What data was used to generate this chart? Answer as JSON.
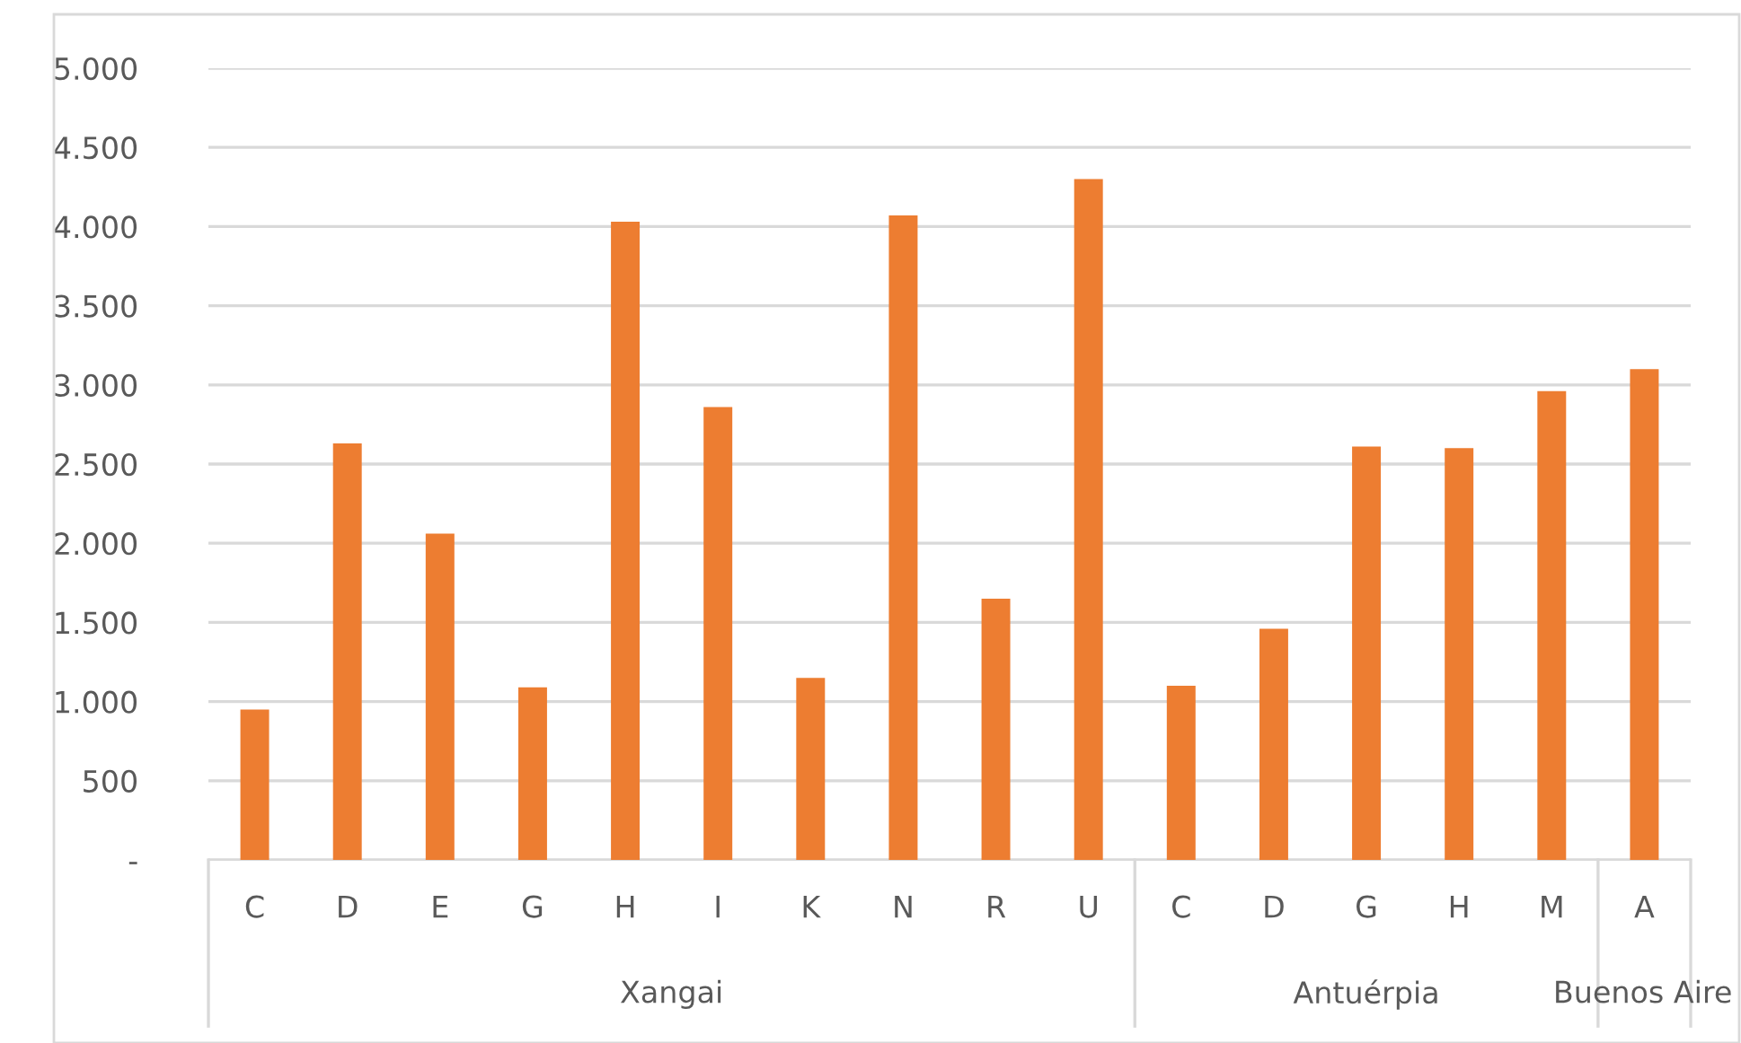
{
  "chart_data": {
    "type": "bar",
    "categories": [
      "C",
      "D",
      "E",
      "G",
      "H",
      "I",
      "K",
      "N",
      "R",
      "U",
      "C",
      "D",
      "G",
      "H",
      "M",
      "A"
    ],
    "values": [
      950,
      2630,
      2060,
      1090,
      4030,
      2860,
      1150,
      4070,
      1650,
      4300,
      1100,
      1460,
      2610,
      2600,
      2960,
      3100
    ],
    "color": "#ed7d31",
    "ylim": [
      0,
      5000
    ],
    "yticks": [
      {
        "value": 0,
        "label": "-"
      },
      {
        "value": 500,
        "label": "500"
      },
      {
        "value": 1000,
        "label": "1.000"
      },
      {
        "value": 1500,
        "label": "1.500"
      },
      {
        "value": 2000,
        "label": "2.000"
      },
      {
        "value": 2500,
        "label": "2.500"
      },
      {
        "value": 3000,
        "label": "3.000"
      },
      {
        "value": 3500,
        "label": "3.500"
      },
      {
        "value": 4000,
        "label": "4.000"
      },
      {
        "value": 4500,
        "label": "4.500"
      },
      {
        "value": 5000,
        "label": "5.000"
      }
    ],
    "grid": "y",
    "annotations": [
      "Xangai",
      "Antuérpia",
      "Buenos Aire"
    ]
  }
}
